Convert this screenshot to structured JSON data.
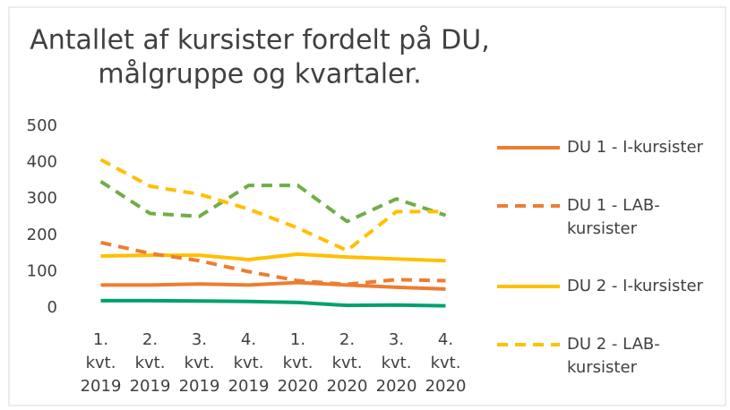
{
  "chart_data": {
    "type": "line",
    "title": [
      "Antallet af kursister fordelt på DU,",
      "målgruppe og kvartaler."
    ],
    "categories": [
      [
        "1.",
        "kvt.",
        "2019"
      ],
      [
        "2.",
        "kvt.",
        "2019"
      ],
      [
        "3.",
        "kvt.",
        "2019"
      ],
      [
        "4.",
        "kvt.",
        "2019"
      ],
      [
        "1.",
        "kvt.",
        "2020"
      ],
      [
        "2.",
        "kvt.",
        "2020"
      ],
      [
        "3.",
        "kvt.",
        "2020"
      ],
      [
        "4.",
        "kvt.",
        "2020"
      ]
    ],
    "series": [
      {
        "name": "DU 1 - I-kursister",
        "color": "#ed7d31",
        "dashed": false,
        "values": [
          63,
          63,
          66,
          63,
          70,
          63,
          57,
          52
        ]
      },
      {
        "name": "DU 1 - LAB-kursister",
        "color": "#ed7d31",
        "dashed": true,
        "values": [
          180,
          150,
          130,
          100,
          75,
          65,
          78,
          75
        ]
      },
      {
        "name": "DU 2 - I-kursister",
        "color": "#ffc000",
        "dashed": false,
        "values": [
          143,
          145,
          145,
          133,
          148,
          140,
          135,
          130
        ]
      },
      {
        "name": "DU 2 - LAB-kursister",
        "color": "#ffc000",
        "dashed": true,
        "values": [
          408,
          335,
          313,
          272,
          220,
          158,
          265,
          265
        ]
      },
      {
        "color": "#70ad47",
        "dashed": true,
        "values": [
          348,
          260,
          252,
          337,
          337,
          238,
          300,
          255
        ]
      },
      {
        "color": "#00a070",
        "dashed": false,
        "values": [
          20,
          20,
          19,
          18,
          15,
          7,
          8,
          6
        ]
      }
    ],
    "ylim": [
      0,
      500
    ],
    "yticks": [
      0,
      100,
      200,
      300,
      400,
      500
    ],
    "grid": false,
    "legend": "right"
  }
}
